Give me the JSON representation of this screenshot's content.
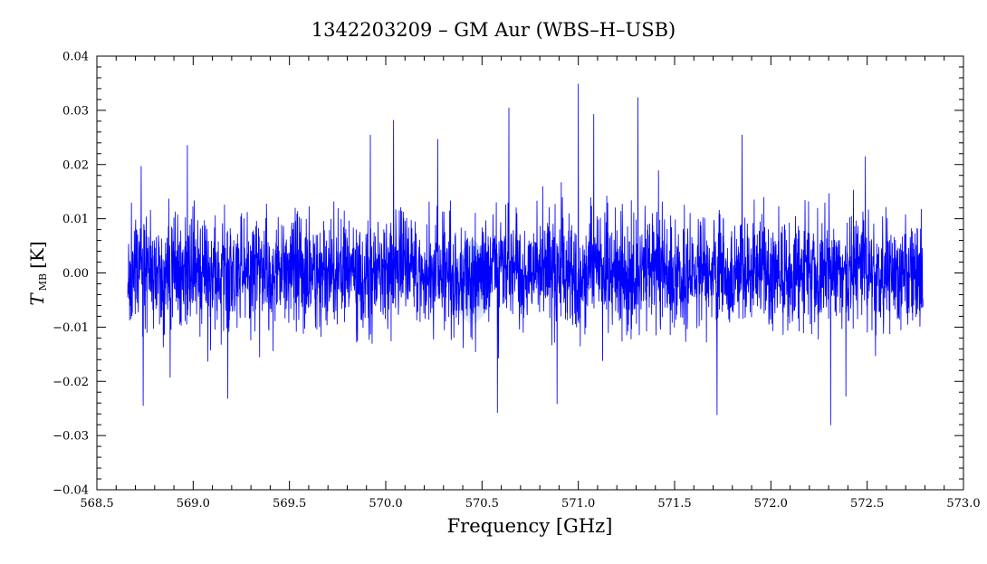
{
  "chart_data": {
    "type": "line",
    "title": "1342203209 – GM Aur (WBS–H–USB)",
    "xlabel": "Frequency [GHz]",
    "ylabel": {
      "main": "T",
      "subscript": "MB",
      "unit": "[K]"
    },
    "xlim": [
      568.5,
      573.0
    ],
    "ylim": [
      -0.04,
      0.04
    ],
    "x_ticks": [
      568.5,
      569.0,
      569.5,
      570.0,
      570.5,
      571.0,
      571.5,
      572.0,
      572.5,
      573.0
    ],
    "x_tick_labels": [
      "568.5",
      "569.0",
      "569.5",
      "570.0",
      "570.5",
      "571.0",
      "571.5",
      "572.0",
      "572.5",
      "573.0"
    ],
    "y_ticks": [
      -0.04,
      -0.03,
      -0.02,
      -0.01,
      0.0,
      0.01,
      0.02,
      0.03,
      0.04
    ],
    "y_tick_labels": [
      "−0.04",
      "−0.03",
      "−0.02",
      "−0.01",
      "0.00",
      "0.01",
      "0.02",
      "0.03",
      "0.04"
    ],
    "grid": false,
    "legend": "none",
    "series": [
      {
        "color": "#0000ff",
        "x_range": [
          568.66,
          572.79
        ],
        "n_points": 3600,
        "noise_rms": 0.0058,
        "features": [
          {
            "x": 568.73,
            "y": 0.0197
          },
          {
            "x": 568.74,
            "y": -0.0245
          },
          {
            "x": 568.88,
            "y": -0.0193
          },
          {
            "x": 568.97,
            "y": 0.0236
          },
          {
            "x": 569.18,
            "y": -0.0232
          },
          {
            "x": 569.92,
            "y": 0.0255
          },
          {
            "x": 570.04,
            "y": 0.0282
          },
          {
            "x": 570.27,
            "y": 0.0247
          },
          {
            "x": 570.58,
            "y": -0.0258
          },
          {
            "x": 570.64,
            "y": 0.0305
          },
          {
            "x": 570.89,
            "y": -0.0242
          },
          {
            "x": 571.0,
            "y": 0.0349
          },
          {
            "x": 571.08,
            "y": 0.0293
          },
          {
            "x": 571.31,
            "y": 0.0324
          },
          {
            "x": 571.72,
            "y": -0.0262
          },
          {
            "x": 571.85,
            "y": 0.0255
          },
          {
            "x": 572.31,
            "y": -0.0281
          },
          {
            "x": 572.39,
            "y": -0.0228
          },
          {
            "x": 572.49,
            "y": 0.0215
          }
        ]
      }
    ],
    "watermark_color": "#7aa0e8"
  }
}
